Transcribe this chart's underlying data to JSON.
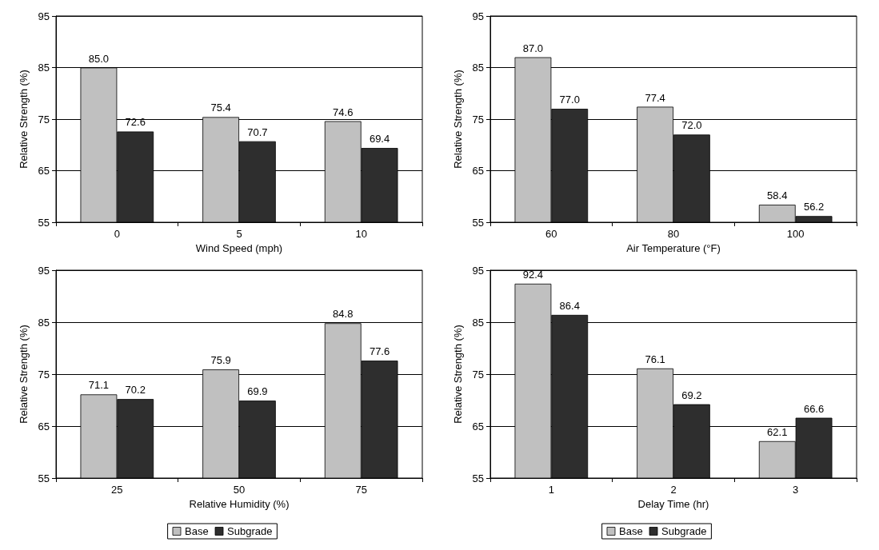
{
  "chart_data": [
    {
      "type": "bar",
      "categories": [
        "0",
        "5",
        "10"
      ],
      "xlabel": "Wind Speed (mph)",
      "ylabel": "Relative Strength (%)",
      "ylim": [
        55,
        95
      ],
      "yticks": [
        55,
        65,
        75,
        85,
        95
      ],
      "grid": "y",
      "legend": false,
      "series": [
        {
          "color": "#c0c0c0",
          "values": [
            85.0,
            75.4,
            74.6
          ],
          "value_labels": [
            "85.0",
            "75.4",
            "74.6"
          ]
        },
        {
          "color": "#2e2e2e",
          "values": [
            72.6,
            70.7,
            69.4
          ],
          "value_labels": [
            "72.6",
            "70.7",
            "69.4"
          ]
        }
      ]
    },
    {
      "type": "bar",
      "categories": [
        "60",
        "80",
        "100"
      ],
      "xlabel": "Air Temperature (°F)",
      "ylabel": "Relative Strength (%)",
      "ylim": [
        55,
        95
      ],
      "yticks": [
        55,
        65,
        75,
        85,
        95
      ],
      "grid": "y",
      "legend": false,
      "series": [
        {
          "color": "#c0c0c0",
          "values": [
            87.0,
            77.4,
            58.4
          ],
          "value_labels": [
            "87.0",
            "77.4",
            "58.4"
          ]
        },
        {
          "color": "#2e2e2e",
          "values": [
            77.0,
            72.0,
            56.2
          ],
          "value_labels": [
            "77.0",
            "72.0",
            "56.2"
          ]
        }
      ]
    },
    {
      "type": "bar",
      "categories": [
        "25",
        "50",
        "75"
      ],
      "xlabel": "Relative Humidity (%)",
      "ylabel": "Relative Strength (%)",
      "ylim": [
        55,
        95
      ],
      "yticks": [
        55,
        65,
        75,
        85,
        95
      ],
      "grid": "y",
      "legend": "bottom",
      "series": [
        {
          "name": "Base",
          "color": "#c0c0c0",
          "values": [
            71.1,
            75.9,
            84.8
          ],
          "value_labels": [
            "71.1",
            "75.9",
            "84.8"
          ]
        },
        {
          "name": "Subgrade",
          "color": "#2e2e2e",
          "values": [
            70.2,
            69.9,
            77.6
          ],
          "value_labels": [
            "70.2",
            "69.9",
            "77.6"
          ]
        }
      ]
    },
    {
      "type": "bar",
      "categories": [
        "1",
        "2",
        "3"
      ],
      "xlabel": "Delay Time (hr)",
      "ylabel": "Relative Strength (%)",
      "ylim": [
        55,
        95
      ],
      "yticks": [
        55,
        65,
        75,
        85,
        95
      ],
      "grid": "y",
      "legend": "bottom",
      "series": [
        {
          "name": "Base",
          "color": "#c0c0c0",
          "values": [
            92.4,
            76.1,
            62.1
          ],
          "value_labels": [
            "92.4",
            "76.1",
            "62.1"
          ]
        },
        {
          "name": "Subgrade",
          "color": "#2e2e2e",
          "values": [
            86.4,
            69.2,
            66.6
          ],
          "value_labels": [
            "86.4",
            "69.2",
            "66.6"
          ]
        }
      ]
    }
  ]
}
